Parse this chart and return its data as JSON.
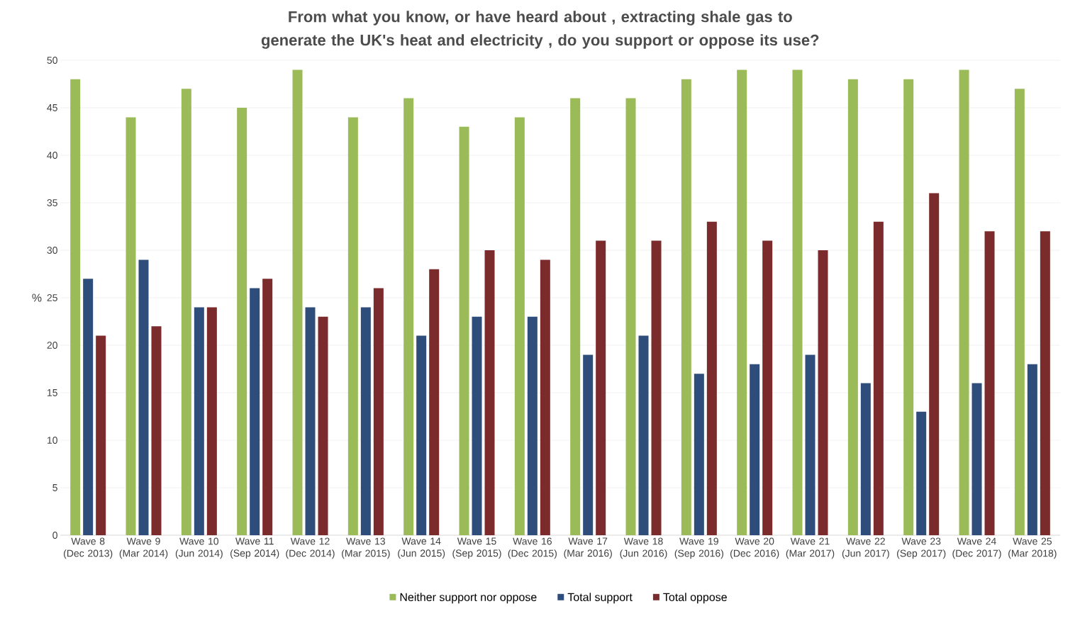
{
  "chart_data": {
    "type": "bar",
    "title": "From what you know, or have heard about , extracting shale gas to generate the UK's heat and electricity , do you support or oppose its use?",
    "ylabel": "%",
    "categories": [
      "Wave 8 (Dec 2013)",
      "Wave 9 (Mar 2014)",
      "Wave 10 (Jun 2014)",
      "Wave 11 (Sep 2014)",
      "Wave 12 (Dec 2014)",
      "Wave 13 (Mar 2015)",
      "Wave 14 (Jun 2015)",
      "Wave 15 (Sep 2015)",
      "Wave 16 (Dec 2015)",
      "Wave 17 (Mar 2016)",
      "Wave 18 (Jun 2016)",
      "Wave 19 (Sep 2016)",
      "Wave 20 (Dec 2016)",
      "Wave 21 (Mar 2017)",
      "Wave 22 (Jun 2017)",
      "Wave 23 (Sep 2017)",
      "Wave 24 (Dec 2017)",
      "Wave 25 (Mar 2018)"
    ],
    "series": [
      {
        "name": "Neither support nor oppose",
        "color": "#9bbb59",
        "values": [
          48,
          44,
          47,
          45,
          49,
          44,
          46,
          43,
          44,
          46,
          46,
          48,
          49,
          49,
          48,
          48,
          49,
          47
        ]
      },
      {
        "name": "Total support",
        "color": "#2e4d7b",
        "values": [
          27,
          29,
          24,
          26,
          24,
          24,
          21,
          23,
          23,
          19,
          21,
          17,
          18,
          19,
          16,
          13,
          16,
          18
        ]
      },
      {
        "name": "Total oppose",
        "color": "#7b2b2b",
        "values": [
          21,
          22,
          24,
          27,
          23,
          26,
          28,
          30,
          29,
          31,
          31,
          33,
          31,
          30,
          33,
          36,
          32,
          32
        ]
      }
    ],
    "ylim": [
      0,
      50
    ],
    "yticks": [
      0,
      5,
      10,
      15,
      20,
      25,
      30,
      35,
      40,
      45,
      50
    ],
    "grid": "y",
    "legend": "bottom"
  }
}
